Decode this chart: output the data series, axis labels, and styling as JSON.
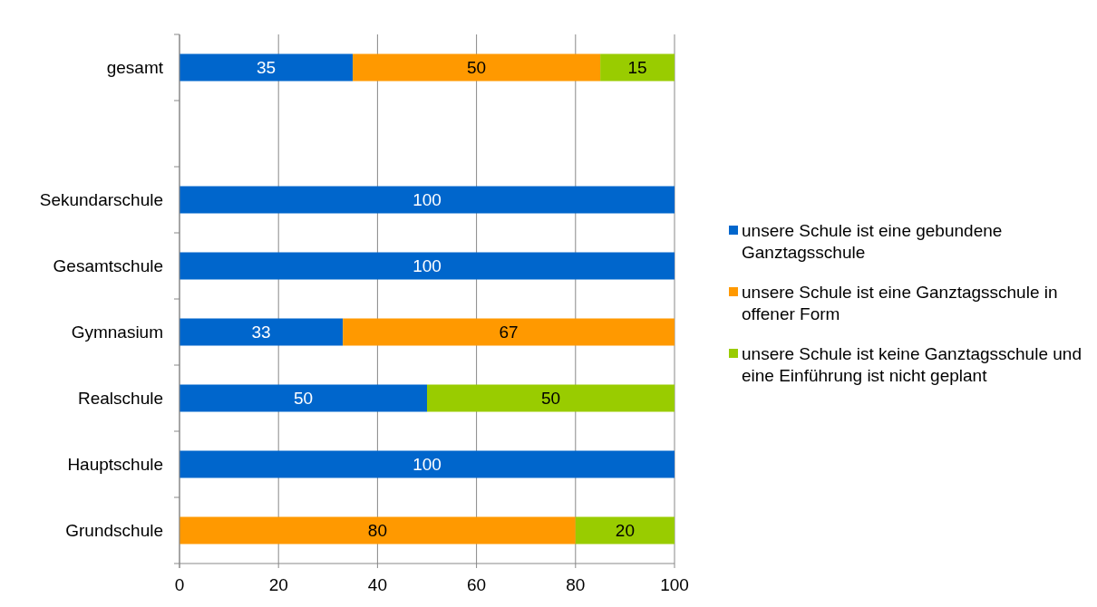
{
  "chart_data": {
    "type": "bar",
    "orientation": "horizontal",
    "stacked": true,
    "categories": [
      "gesamt",
      null,
      "Sekundarschule",
      "Gesamtschule",
      "Gymnasium",
      "Realschule",
      "Hauptschule",
      "Grundschule"
    ],
    "series": [
      {
        "name": "unsere Schule ist eine gebundene Ganztagsschule",
        "color": "#0066cc",
        "values": [
          35,
          null,
          100,
          100,
          33,
          50,
          100,
          0
        ],
        "value_labels": [
          "35",
          null,
          "100",
          "100",
          "33",
          "50",
          "100",
          null
        ]
      },
      {
        "name": "unsere Schule ist eine Ganztagsschule in offener Form",
        "color": "#ff9900",
        "values": [
          50,
          null,
          null,
          null,
          67,
          null,
          null,
          80
        ],
        "value_labels": [
          "50",
          null,
          null,
          null,
          "67",
          null,
          null,
          "80"
        ]
      },
      {
        "name": "unsere Schule ist keine Ganztagsschule und eine Einführung ist nicht geplant",
        "color": "#99cc00",
        "values": [
          15,
          null,
          null,
          null,
          null,
          50,
          null,
          20
        ],
        "value_labels": [
          "15",
          null,
          null,
          null,
          null,
          "50",
          null,
          "20"
        ]
      }
    ],
    "xlim": [
      0,
      100
    ],
    "xticks": [
      0,
      20,
      40,
      60,
      80,
      100
    ],
    "grid": "x",
    "legend": "right"
  }
}
